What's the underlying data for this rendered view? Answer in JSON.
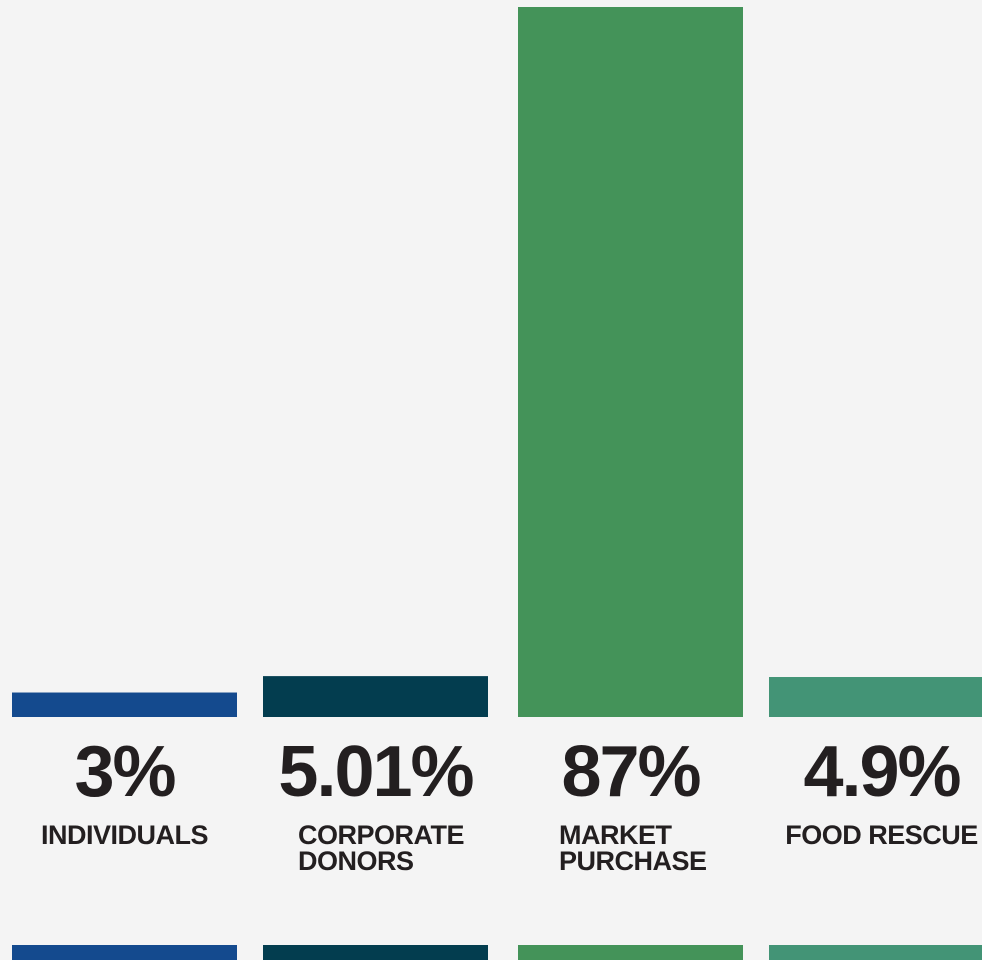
{
  "chart_data": {
    "type": "bar",
    "categories": [
      "INDIVIDUALS",
      "CORPORATE DONORS",
      "MARKET PURCHASE",
      "FOOD RESCUE"
    ],
    "label_lines": [
      [
        "INDIVIDUALS"
      ],
      [
        "CORPORATE",
        "DONORS"
      ],
      [
        "MARKET",
        "PURCHASE"
      ],
      [
        "FOOD RESCUE"
      ]
    ],
    "values": [
      3,
      5.01,
      87,
      4.9
    ],
    "value_labels": [
      "3%",
      "5.01%",
      "87%",
      "4.9%"
    ],
    "colors": [
      "#144a8e",
      "#033d4f",
      "#449359",
      "#439476"
    ],
    "title": "",
    "xlabel": "",
    "ylabel": "",
    "ylim": [
      0,
      87
    ],
    "grid": false,
    "legend": "none"
  }
}
